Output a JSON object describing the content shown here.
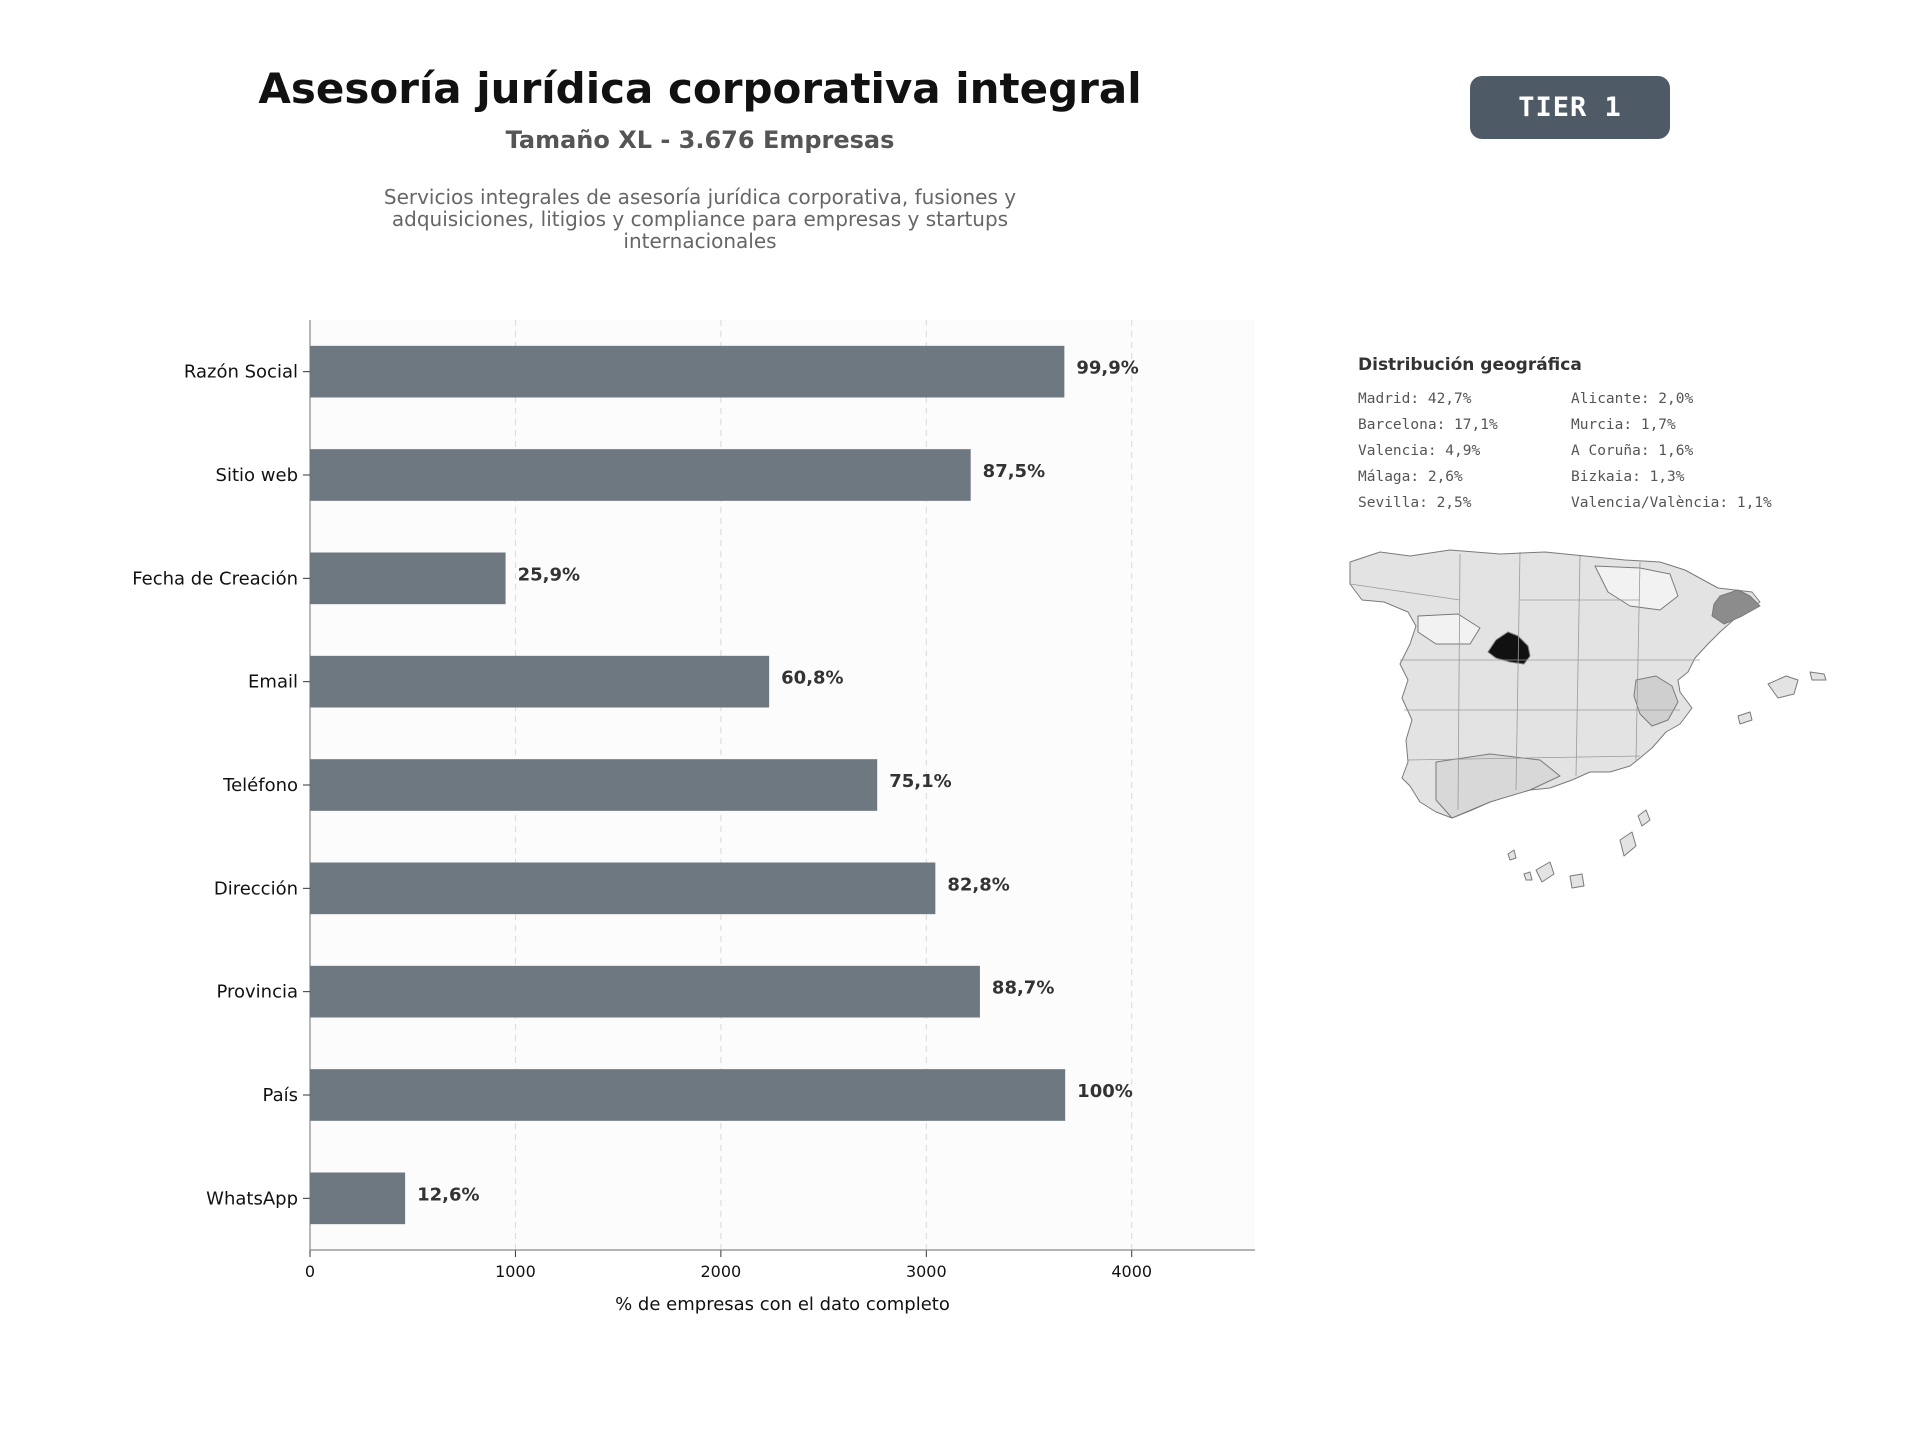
{
  "header": {
    "title": "Asesoría jurídica corporativa integral",
    "subtitle": "Tamaño XL - 3.676 Empresas",
    "description": "Servicios integrales de asesoría jurídica corporativa, fusiones y adquisiciones, litigios y compliance para empresas y startups internacionales",
    "tier": "TIER 1"
  },
  "colors": {
    "bar": "#6e7881",
    "tier_badge": "#4e5a66",
    "map_highlight": "#111111",
    "map_secondary": "#8c8c8c",
    "map_base": "#e3e3e3"
  },
  "chart_data": {
    "type": "bar",
    "orientation": "horizontal",
    "categories": [
      "Razón Social",
      "Sitio web",
      "Fecha de Creación",
      "Email",
      "Teléfono",
      "Dirección",
      "Provincia",
      "País",
      "WhatsApp"
    ],
    "values": [
      3672,
      3216,
      952,
      2235,
      2761,
      3044,
      3261,
      3676,
      463
    ],
    "labels": [
      "99,9%",
      "87,5%",
      "25,9%",
      "60,8%",
      "75,1%",
      "82,8%",
      "88,7%",
      "100%",
      "12,6%"
    ],
    "xlabel": "% de empresas con el dato completo",
    "ylabel": "",
    "xlim": [
      0,
      4600
    ],
    "xticks": [
      0,
      1000,
      2000,
      3000,
      4000
    ],
    "grid": "vertical-dashed"
  },
  "geo": {
    "title": "Distribución geográfica",
    "items": [
      "Madrid: 42,7%",
      "Alicante: 2,0%",
      "Barcelona: 17,1%",
      "Murcia: 1,7%",
      "Valencia: 4,9%",
      "A Coruña: 1,6%",
      "Málaga: 2,6%",
      "Bizkaia: 1,3%",
      "Sevilla: 2,5%",
      "Valencia/València: 1,1%"
    ]
  }
}
